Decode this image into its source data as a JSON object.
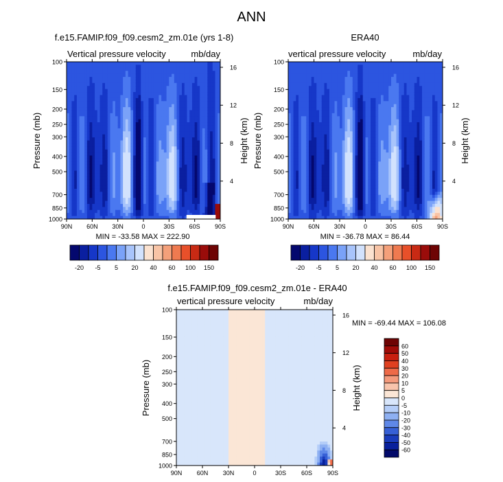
{
  "page_title": "ANN",
  "chart_data": [
    {
      "type": "heatmap",
      "id": "model",
      "title": "f.e15.FAMIP.f09_f09.cesm2_zm.01e (yrs 1-8)",
      "left_label": "Vertical pressure velocity",
      "right_label": "mb/day",
      "ylabel": "Pressure (mb)",
      "y2label": "Height (km)",
      "xticks": [
        "90N",
        "60N",
        "30N",
        "0",
        "30S",
        "60S",
        "90S"
      ],
      "yticks": [
        "100",
        "150",
        "200",
        "250",
        "300",
        "400",
        "500",
        "700",
        "850",
        "1000"
      ],
      "y2ticks": [
        "16",
        "12",
        "8",
        "4"
      ],
      "stats": "MIN = -33.58  MAX = 222.90",
      "colorbar_labels": [
        "-20",
        "-5",
        "5",
        "20",
        "40",
        "60",
        "100",
        "150"
      ]
    },
    {
      "type": "heatmap",
      "id": "obs",
      "title": "ERA40",
      "left_label": "vertical pressure velocity",
      "right_label": "mb/day",
      "ylabel": "Pressure (mb)",
      "y2label": "Height (km)",
      "xticks": [
        "90N",
        "60N",
        "30N",
        "0",
        "30S",
        "60S",
        "90S"
      ],
      "yticks": [
        "100",
        "150",
        "200",
        "250",
        "300",
        "400",
        "500",
        "700",
        "850",
        "1000"
      ],
      "y2ticks": [
        "16",
        "12",
        "8",
        "4"
      ],
      "stats": "MIN = -36.78  MAX =  86.44",
      "colorbar_labels": [
        "-20",
        "-5",
        "5",
        "20",
        "40",
        "60",
        "100",
        "150"
      ]
    },
    {
      "type": "heatmap",
      "id": "diff",
      "title": "f.e15.FAMIP.f09_f09.cesm2_zm.01e - ERA40",
      "left_label": "vertical pressure velocity",
      "right_label": "mb/day",
      "ylabel": "Pressure (mb)",
      "y2label": "Height (km)",
      "xticks": [
        "90N",
        "60N",
        "30N",
        "0",
        "30S",
        "60S",
        "90S"
      ],
      "yticks": [
        "100",
        "150",
        "200",
        "250",
        "300",
        "400",
        "500",
        "700",
        "850",
        "1000"
      ],
      "y2ticks": [
        "16",
        "12",
        "8",
        "4"
      ],
      "stats": "MIN = -69.44  MAX = 106.08",
      "colorbar_labels": [
        "60",
        "50",
        "40",
        "30",
        "20",
        "10",
        "5",
        "0",
        "-5",
        "-10",
        "-20",
        "-30",
        "-40",
        "-50",
        "-60"
      ]
    }
  ],
  "colors": {
    "full": [
      "#04086e",
      "#0a1fa0",
      "#1637c8",
      "#2c55e0",
      "#4a78f0",
      "#7aa2f8",
      "#a8c4fb",
      "#d2e2fd",
      "#fbe2d0",
      "#f8c4a6",
      "#f4a07a",
      "#ef7a50",
      "#e8502a",
      "#c82a14",
      "#9a0c0a",
      "#6e0404"
    ],
    "diff": [
      "#6e0404",
      "#a00c08",
      "#c82010",
      "#e04020",
      "#ee6a48",
      "#f49a7c",
      "#f8c4ac",
      "#fbe6d6",
      "#d8e6fb",
      "#b4cdf8",
      "#8eb0f2",
      "#5f88e8",
      "#3760d6",
      "#1a3cbc",
      "#08209c",
      "#020a6a"
    ]
  }
}
